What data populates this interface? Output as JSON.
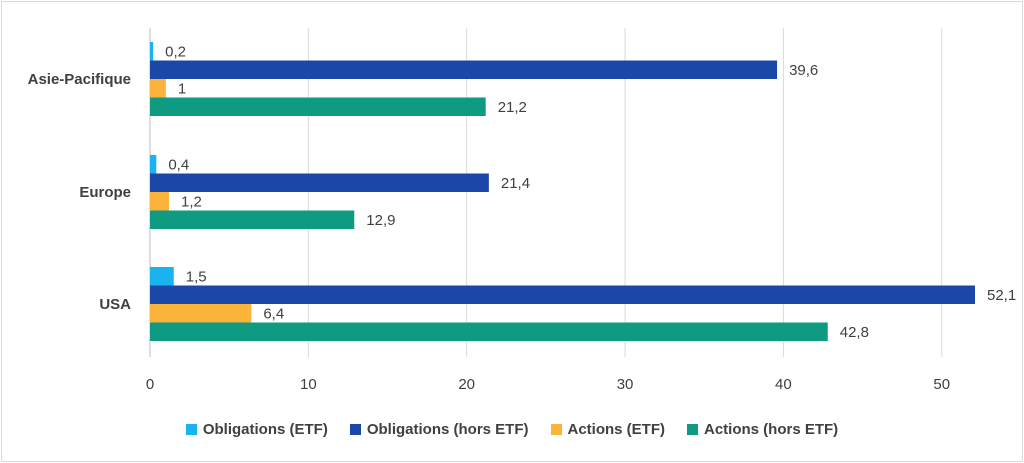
{
  "chart_data": {
    "type": "bar",
    "orientation": "horizontal",
    "categories": [
      "Asie-Pacifique",
      "Europe",
      "USA"
    ],
    "series": [
      {
        "name": "Obligations (ETF)",
        "color": "#1bb3ef",
        "values": [
          0.2,
          0.4,
          1.5
        ],
        "labels": [
          "0,2",
          "0,4",
          "1,5"
        ]
      },
      {
        "name": "Obligations (hors ETF)",
        "color": "#1a47a8",
        "values": [
          39.6,
          21.4,
          52.1
        ],
        "labels": [
          "39,6",
          "21,4",
          "52,1"
        ]
      },
      {
        "name": "Actions (ETF)",
        "color": "#fbb33a",
        "values": [
          1,
          1.2,
          6.4
        ],
        "labels": [
          "1",
          "1,2",
          "6,4"
        ]
      },
      {
        "name": "Actions (hors ETF)",
        "color": "#0f9a82",
        "values": [
          21.2,
          12.9,
          42.8
        ],
        "labels": [
          "21,2",
          "12,9",
          "42,8"
        ]
      }
    ],
    "xlim": [
      0,
      52.1
    ],
    "xticks": [
      0,
      10,
      20,
      30,
      40,
      50
    ],
    "xtick_labels": [
      "0",
      "10",
      "20",
      "30",
      "40",
      "50"
    ],
    "grid": "vertical",
    "legend_position": "bottom",
    "title": "",
    "xlabel": "",
    "ylabel": ""
  }
}
